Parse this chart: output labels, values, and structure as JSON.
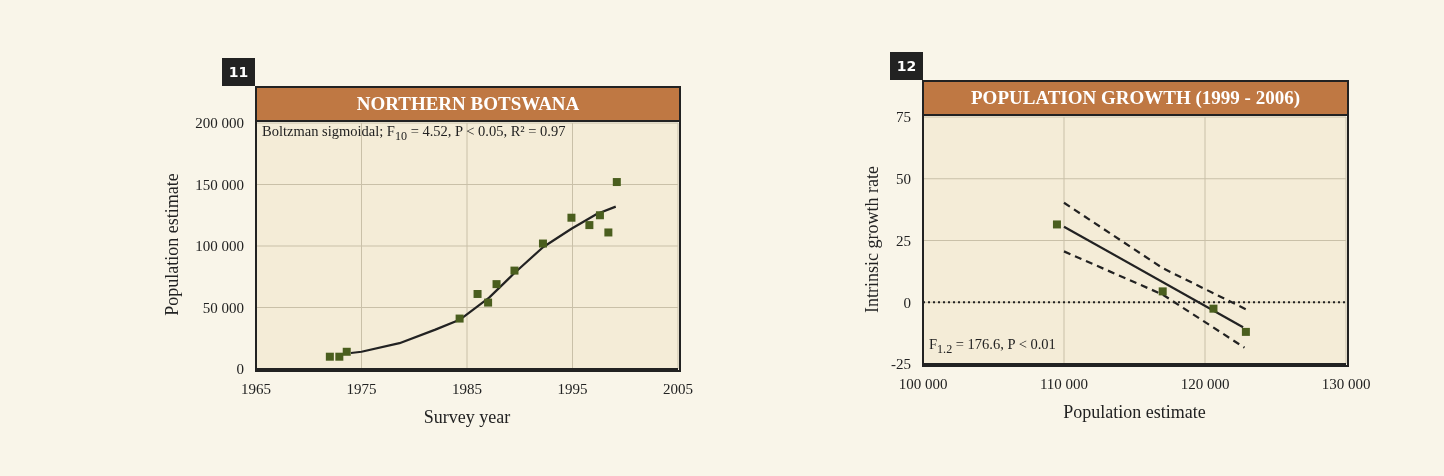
{
  "chart_data": [
    {
      "type": "scatter",
      "title": "NORTHERN BOTSWANA",
      "xlabel": "Survey year",
      "ylabel": "Population estimate",
      "annotations": [
        "11",
        "Boltzman sigmoidal; F$_{10}$ = 4.52, P < 0.05, R² = 0.97"
      ],
      "xlim": [
        1965,
        2005
      ],
      "xticks": [
        1965,
        1975,
        1985,
        1995,
        2005
      ],
      "ylim": [
        0,
        200000
      ],
      "yticks": [
        0,
        {
          "value": 50000,
          "label": "50 000"
        },
        {
          "value": 100000,
          "label": "100 000"
        },
        {
          "value": 150000,
          "label": "150 000"
        },
        {
          "value": 200000,
          "label": "200 000"
        }
      ],
      "grid": true,
      "series": [
        {
          "marker": "square",
          "color": "#4a5e1e",
          "x": [
            1972.0,
            1972.9,
            1973.6,
            1984.3,
            1986.0,
            1987.0,
            1987.8,
            1989.5,
            1992.2,
            1994.9,
            1996.6,
            1997.6,
            1998.4,
            1999.2
          ],
          "values": [
            10000,
            10000,
            14000,
            41000,
            61000,
            54000,
            69000,
            80000,
            102000,
            123000,
            117000,
            125000,
            111000,
            152000
          ]
        },
        {
          "type": "line",
          "marker": "none",
          "color": "#222222",
          "line_style": "solid",
          "x": [
            1974,
            1975,
            1978.6,
            1982,
            1984.3,
            1987.1,
            1989.5,
            1992.2,
            1994.9,
            1997.3,
            1999.1
          ],
          "values": [
            13000,
            14000,
            21000,
            32000,
            40000,
            58000,
            78000,
            99000,
            114000,
            126000,
            132000
          ]
        }
      ]
    },
    {
      "type": "scatter",
      "title": "POPULATION GROWTH (1999 - 2006)",
      "xlabel": "Population estimate",
      "ylabel": "Intrinsic growth rate",
      "annotations": [
        "12",
        "F$_{1.2}$ = 176.6, P < 0.01"
      ],
      "xlim": [
        100000,
        130000
      ],
      "xticks": [
        {
          "value": 100000,
          "label": "100 000"
        },
        {
          "value": 110000,
          "label": "110 000"
        },
        {
          "value": 120000,
          "label": "120 000"
        },
        {
          "value": 130000,
          "label": "130 000"
        }
      ],
      "ylim": [
        -25,
        75
      ],
      "yticks": [
        -25,
        0,
        25,
        50,
        75
      ],
      "grid": true,
      "ref_lines": [
        {
          "axis": "y",
          "value": 0,
          "color": "#222222",
          "line_style": "dotted"
        }
      ],
      "series": [
        {
          "marker": "square",
          "color": "#4a5e1e",
          "x": [
            109500,
            117000,
            120600,
            122900
          ],
          "values": [
            31.5,
            4.4,
            -2.6,
            -12
          ]
        },
        {
          "type": "line",
          "marker": "none",
          "color": "#222222",
          "line_style": "solid",
          "x": [
            110000,
            122700
          ],
          "values": [
            30.6,
            -10.1
          ]
        },
        {
          "type": "line",
          "marker": "none",
          "color": "#222222",
          "line_style": "dashed",
          "x": [
            110000,
            117000,
            123100
          ],
          "values": [
            40.3,
            13.8,
            -3.4
          ]
        },
        {
          "type": "line",
          "marker": "none",
          "color": "#222222",
          "line_style": "dashed",
          "x": [
            110000,
            117000,
            122800
          ],
          "values": [
            20.6,
            3.1,
            -18.4
          ]
        }
      ]
    }
  ]
}
